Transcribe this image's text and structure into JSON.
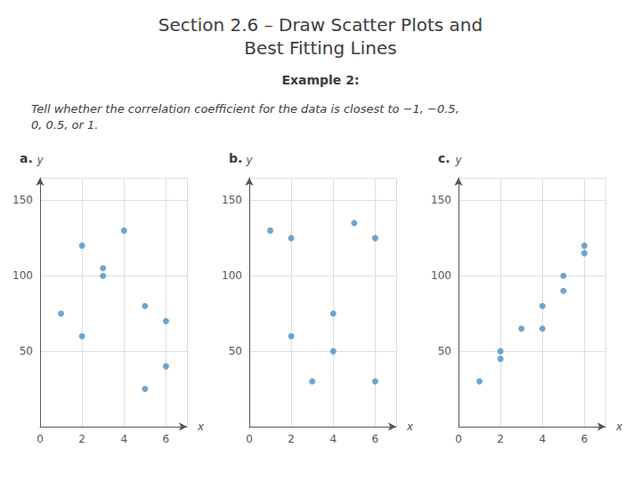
{
  "title": "Section 2.6 – Draw Scatter Plots and\nBest Fitting Lines",
  "subtitle": "Example 2:",
  "annotations": [
    "Tell whether the correlation coefficient for the data is closest to −1, −0.5,\n0, 0.5, or 1."
  ],
  "chart_data": [
    {
      "type": "scatter",
      "title": "a.",
      "x": [
        1,
        2,
        2,
        3,
        3,
        4,
        5,
        5,
        6,
        6
      ],
      "y": [
        75,
        120,
        60,
        105,
        100,
        130,
        25,
        80,
        40,
        70
      ],
      "color": "#4A90C4",
      "xlabel": "x",
      "ylabel": "y",
      "xlim": [
        0,
        7
      ],
      "ylim": [
        0,
        165
      ],
      "xticks": [
        0,
        2,
        4,
        6
      ],
      "yticks": [
        50,
        100,
        150
      ],
      "grid": true
    },
    {
      "type": "scatter",
      "title": "b.",
      "x": [
        1,
        2,
        2,
        3,
        4,
        4,
        5,
        6,
        6
      ],
      "y": [
        130,
        60,
        125,
        30,
        75,
        50,
        135,
        125,
        30
      ],
      "color": "#4A90C4",
      "xlabel": "x",
      "ylabel": "y",
      "xlim": [
        0,
        7
      ],
      "ylim": [
        0,
        165
      ],
      "xticks": [
        0,
        2,
        4,
        6
      ],
      "yticks": [
        50,
        100,
        150
      ],
      "grid": true
    },
    {
      "type": "scatter",
      "title": "c.",
      "x": [
        1,
        2,
        2,
        3,
        4,
        4,
        5,
        5,
        6,
        6
      ],
      "y": [
        30,
        50,
        45,
        65,
        80,
        65,
        100,
        90,
        115,
        120
      ],
      "color": "#4A90C4",
      "xlabel": "x",
      "ylabel": "y",
      "xlim": [
        0,
        7
      ],
      "ylim": [
        0,
        165
      ],
      "xticks": [
        0,
        2,
        4,
        6
      ],
      "yticks": [
        50,
        100,
        150
      ],
      "grid": true
    }
  ]
}
